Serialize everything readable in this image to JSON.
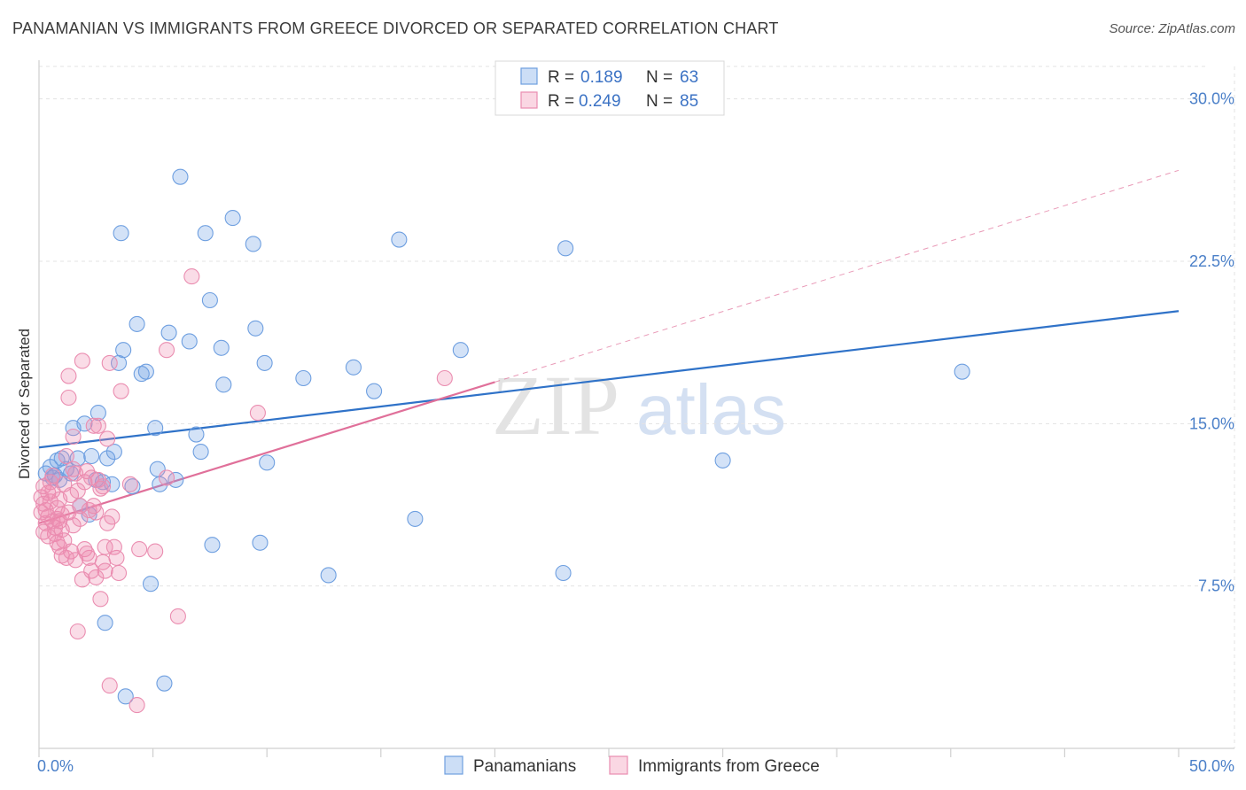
{
  "title": "PANAMANIAN VS IMMIGRANTS FROM GREECE DIVORCED OR SEPARATED CORRELATION CHART",
  "source": "Source: ZipAtlas.com",
  "watermark": {
    "zip": "ZIP",
    "atlas": "atlas"
  },
  "colors": {
    "blue": "#4a87d6",
    "blue_fill": "rgba(110,160,230,0.30)",
    "blue_line": "#2f72c8",
    "pink": "#e8709a",
    "pink_fill": "rgba(240,140,175,0.30)",
    "pink_line": "#e0709a",
    "grid": "#e3e3e3",
    "axis_label": "#4a7fc8"
  },
  "legend": {
    "rows": [
      {
        "r_label": "R =",
        "r_value": "0.189",
        "n_label": "N =",
        "n_value": "63"
      },
      {
        "r_label": "R =",
        "r_value": "0.249",
        "n_label": "N =",
        "n_value": "85"
      }
    ]
  },
  "bottom_legend": [
    "Panamanians",
    "Immigrants from Greece"
  ],
  "chart_data": {
    "type": "scatter",
    "title": "PANAMANIAN VS IMMIGRANTS FROM GREECE DIVORCED OR SEPARATED CORRELATION CHART",
    "xlabel": "",
    "ylabel": "Divorced or Separated",
    "xlim": [
      0,
      50
    ],
    "ylim": [
      0,
      31.5
    ],
    "x_tick_labels": [
      "0.0%",
      "50.0%"
    ],
    "y_ticks": [
      7.5,
      15.0,
      22.5,
      30.0
    ],
    "y_tick_labels": [
      "7.5%",
      "15.0%",
      "22.5%",
      "30.0%"
    ],
    "grid": true,
    "series": [
      {
        "name": "Panamanians",
        "color": "blue",
        "R": 0.189,
        "N": 63,
        "trend": {
          "x0": 0,
          "y0": 13.9,
          "x1": 50,
          "y1": 20.2,
          "solid_to": 50
        },
        "points": [
          [
            0.3,
            12.7
          ],
          [
            0.5,
            13.0
          ],
          [
            0.6,
            12.5
          ],
          [
            0.8,
            13.3
          ],
          [
            0.9,
            12.4
          ],
          [
            1.0,
            13.4
          ],
          [
            1.2,
            12.9
          ],
          [
            1.4,
            12.7
          ],
          [
            1.5,
            14.8
          ],
          [
            1.7,
            13.4
          ],
          [
            1.8,
            11.2
          ],
          [
            2.0,
            15.0
          ],
          [
            2.2,
            10.8
          ],
          [
            2.3,
            13.5
          ],
          [
            2.5,
            12.4
          ],
          [
            2.6,
            15.5
          ],
          [
            2.8,
            12.3
          ],
          [
            2.9,
            5.8
          ],
          [
            3.0,
            13.4
          ],
          [
            3.2,
            12.2
          ],
          [
            3.3,
            13.7
          ],
          [
            3.5,
            17.8
          ],
          [
            3.6,
            23.8
          ],
          [
            3.7,
            18.4
          ],
          [
            3.8,
            2.4
          ],
          [
            4.1,
            12.1
          ],
          [
            4.3,
            19.6
          ],
          [
            4.5,
            17.3
          ],
          [
            4.7,
            17.4
          ],
          [
            4.9,
            7.6
          ],
          [
            5.1,
            14.8
          ],
          [
            5.2,
            12.9
          ],
          [
            5.3,
            12.2
          ],
          [
            5.5,
            3.0
          ],
          [
            5.7,
            19.2
          ],
          [
            6.0,
            12.4
          ],
          [
            6.2,
            26.4
          ],
          [
            6.6,
            18.8
          ],
          [
            6.9,
            14.5
          ],
          [
            7.1,
            13.7
          ],
          [
            7.3,
            23.8
          ],
          [
            7.6,
            9.4
          ],
          [
            7.5,
            20.7
          ],
          [
            8.0,
            18.5
          ],
          [
            8.1,
            16.8
          ],
          [
            8.5,
            24.5
          ],
          [
            9.4,
            23.3
          ],
          [
            9.5,
            19.4
          ],
          [
            9.7,
            9.5
          ],
          [
            9.9,
            17.8
          ],
          [
            10.0,
            13.2
          ],
          [
            11.6,
            17.1
          ],
          [
            12.7,
            8.0
          ],
          [
            13.8,
            17.6
          ],
          [
            14.7,
            16.5
          ],
          [
            15.8,
            23.5
          ],
          [
            16.5,
            10.6
          ],
          [
            18.5,
            18.4
          ],
          [
            23.0,
            8.1
          ],
          [
            23.1,
            23.1
          ],
          [
            30.0,
            13.3
          ],
          [
            40.5,
            17.4
          ],
          [
            0.7,
            12.6
          ]
        ]
      },
      {
        "name": "Immigrants from Greece",
        "color": "pink",
        "R": 0.249,
        "N": 85,
        "trend": {
          "x0": 0,
          "y0": 10.4,
          "x1": 50,
          "y1": 26.7,
          "solid_to": 20
        },
        "points": [
          [
            0.1,
            11.6
          ],
          [
            0.1,
            10.9
          ],
          [
            0.2,
            11.3
          ],
          [
            0.2,
            12.1
          ],
          [
            0.3,
            10.4
          ],
          [
            0.3,
            11.0
          ],
          [
            0.4,
            11.8
          ],
          [
            0.4,
            10.7
          ],
          [
            0.5,
            12.3
          ],
          [
            0.5,
            11.4
          ],
          [
            0.6,
            10.5
          ],
          [
            0.6,
            11.9
          ],
          [
            0.7,
            10.2
          ],
          [
            0.7,
            9.9
          ],
          [
            0.8,
            11.1
          ],
          [
            0.8,
            10.6
          ],
          [
            0.9,
            9.3
          ],
          [
            0.9,
            11.5
          ],
          [
            1.0,
            8.9
          ],
          [
            1.0,
            10.8
          ],
          [
            1.1,
            12.2
          ],
          [
            1.1,
            9.6
          ],
          [
            1.2,
            13.5
          ],
          [
            1.2,
            8.8
          ],
          [
            1.3,
            17.2
          ],
          [
            1.3,
            16.2
          ],
          [
            1.4,
            11.7
          ],
          [
            1.4,
            9.1
          ],
          [
            1.5,
            14.4
          ],
          [
            1.5,
            10.3
          ],
          [
            1.6,
            12.7
          ],
          [
            1.6,
            8.7
          ],
          [
            1.7,
            5.4
          ],
          [
            1.8,
            11.2
          ],
          [
            1.8,
            10.6
          ],
          [
            1.9,
            17.9
          ],
          [
            1.9,
            7.8
          ],
          [
            2.0,
            12.3
          ],
          [
            2.0,
            9.2
          ],
          [
            2.1,
            12.8
          ],
          [
            2.2,
            11.0
          ],
          [
            2.2,
            8.8
          ],
          [
            2.3,
            12.5
          ],
          [
            2.3,
            8.2
          ],
          [
            2.4,
            14.9
          ],
          [
            2.5,
            7.9
          ],
          [
            2.5,
            10.9
          ],
          [
            2.6,
            14.9
          ],
          [
            2.6,
            12.4
          ],
          [
            2.7,
            6.9
          ],
          [
            2.8,
            8.6
          ],
          [
            2.8,
            12.1
          ],
          [
            2.9,
            9.3
          ],
          [
            2.9,
            8.2
          ],
          [
            3.0,
            14.3
          ],
          [
            3.1,
            17.8
          ],
          [
            3.1,
            2.9
          ],
          [
            3.2,
            10.7
          ],
          [
            3.3,
            9.3
          ],
          [
            3.4,
            8.8
          ],
          [
            3.5,
            8.1
          ],
          [
            3.6,
            16.5
          ],
          [
            4.0,
            12.2
          ],
          [
            4.3,
            2.0
          ],
          [
            4.4,
            9.2
          ],
          [
            5.1,
            9.1
          ],
          [
            5.6,
            18.4
          ],
          [
            5.6,
            12.5
          ],
          [
            6.1,
            6.1
          ],
          [
            6.7,
            21.8
          ],
          [
            9.6,
            15.5
          ],
          [
            17.8,
            17.1
          ],
          [
            0.2,
            10.0
          ],
          [
            0.4,
            9.8
          ],
          [
            0.6,
            12.6
          ],
          [
            0.8,
            9.5
          ],
          [
            1.0,
            10.1
          ],
          [
            1.3,
            10.9
          ],
          [
            1.7,
            11.9
          ],
          [
            2.1,
            9.0
          ],
          [
            2.4,
            11.2
          ],
          [
            2.7,
            12.0
          ],
          [
            3.0,
            10.4
          ],
          [
            1.5,
            12.9
          ],
          [
            0.9,
            10.5
          ]
        ]
      }
    ]
  }
}
